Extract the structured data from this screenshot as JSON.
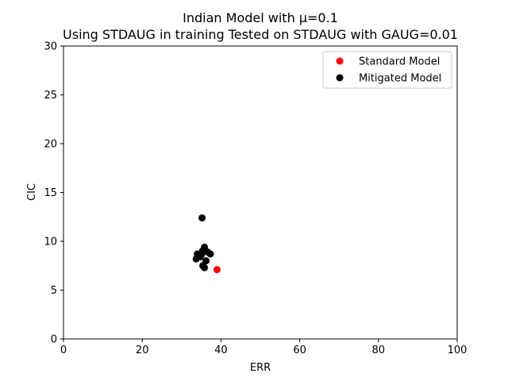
{
  "chart_data": {
    "type": "scatter",
    "title": "Indian Model with μ=0.1",
    "subtitle": "Using STDAUG in training Tested on STDAUG with GAUG=0.01",
    "xlabel": "ERR",
    "ylabel": "CIC",
    "xlim": [
      0,
      100
    ],
    "ylim": [
      0,
      30
    ],
    "xticks": [
      "0",
      "20",
      "40",
      "60",
      "80",
      "100"
    ],
    "yticks": [
      "0",
      "5",
      "10",
      "15",
      "20",
      "25",
      "30"
    ],
    "grid": false,
    "legend_position": "top-right",
    "series": [
      {
        "name": "Standard Model",
        "color": "#ff0000",
        "points": [
          {
            "x": 39.0,
            "y": 7.1
          }
        ]
      },
      {
        "name": "Mitigated Model",
        "color": "#000000",
        "points": [
          {
            "x": 35.2,
            "y": 12.4
          },
          {
            "x": 35.8,
            "y": 9.4
          },
          {
            "x": 35.3,
            "y": 9.0
          },
          {
            "x": 36.6,
            "y": 8.9
          },
          {
            "x": 37.3,
            "y": 8.7
          },
          {
            "x": 34.0,
            "y": 8.7
          },
          {
            "x": 35.0,
            "y": 8.6
          },
          {
            "x": 34.7,
            "y": 8.4
          },
          {
            "x": 33.7,
            "y": 8.2
          },
          {
            "x": 36.2,
            "y": 8.0
          },
          {
            "x": 35.4,
            "y": 7.5
          },
          {
            "x": 35.8,
            "y": 7.3
          }
        ]
      }
    ]
  }
}
